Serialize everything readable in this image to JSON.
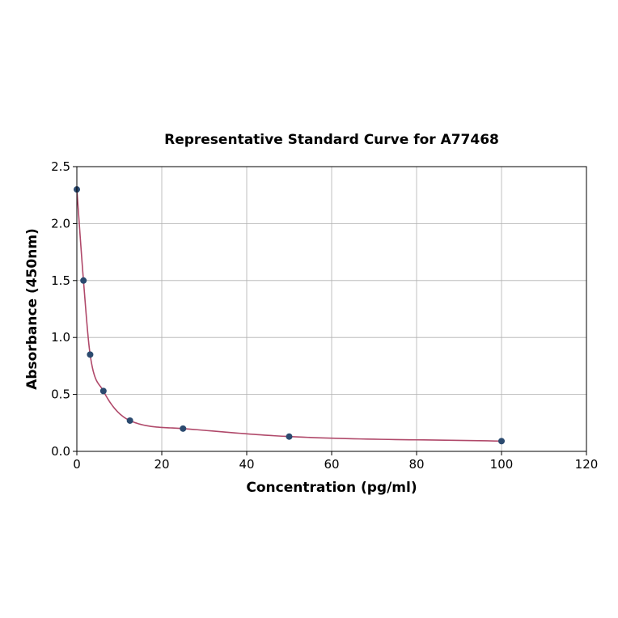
{
  "chart_data": {
    "type": "scatter",
    "title": "Representative Standard Curve for A77468",
    "xlabel": "Concentration (pg/ml)",
    "ylabel": "Absorbance (450nm)",
    "xlim": [
      0,
      120
    ],
    "ylim": [
      0,
      2.5
    ],
    "xticks": [
      "0",
      "20",
      "40",
      "60",
      "80",
      "100",
      "120"
    ],
    "yticks": [
      "0.0",
      "0.5",
      "1.0",
      "1.5",
      "2.0",
      "2.5"
    ],
    "grid": true,
    "series": [
      {
        "x": [
          0,
          1.56,
          3.13,
          6.25,
          12.5,
          25,
          50,
          100
        ],
        "y": [
          2.3,
          1.5,
          0.85,
          0.53,
          0.27,
          0.2,
          0.13,
          0.09
        ]
      }
    ],
    "fit_curve": {
      "color": "#b0496a"
    },
    "point_color": "#2b4a6f"
  }
}
